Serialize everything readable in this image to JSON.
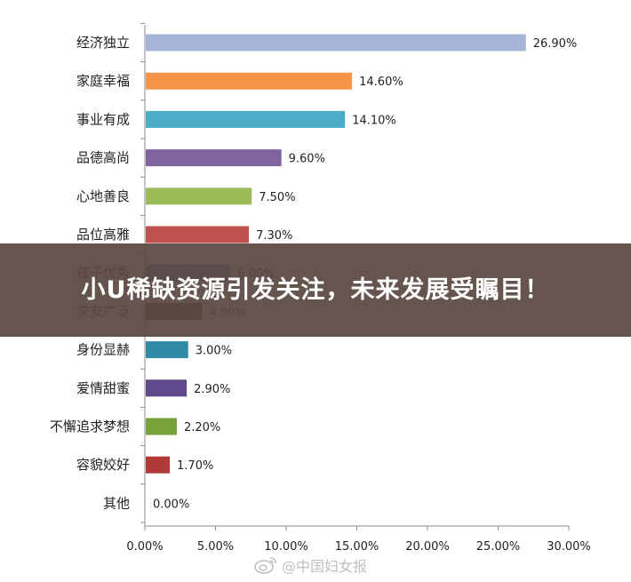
{
  "banner": {
    "text": "小U稀缺资源引发关注，未来发展受瞩目！"
  },
  "watermark": {
    "text": "@中国妇女报",
    "icon": "weibo-icon"
  },
  "chart_data": {
    "type": "bar",
    "orientation": "horizontal",
    "categories": [
      "经济独立",
      "家庭幸福",
      "事业有成",
      "品德高尚",
      "心地善良",
      "品位高雅",
      "孩子优秀",
      "交友广泛",
      "身份显赫",
      "爱情甜蜜",
      "不懈追求梦想",
      "容貌姣好",
      "其他"
    ],
    "values": [
      26.9,
      14.6,
      14.1,
      9.6,
      7.5,
      7.3,
      6.0,
      4.0,
      3.0,
      2.9,
      2.2,
      1.7,
      0.0
    ],
    "value_labels": [
      "26.90%",
      "14.60%",
      "14.10%",
      "9.60%",
      "7.50%",
      "7.30%",
      "6.00%",
      "4.00%",
      "3.00%",
      "2.90%",
      "2.20%",
      "1.70%",
      "0.00%"
    ],
    "colors": [
      "#a4b4d6",
      "#f69547",
      "#4bacc6",
      "#8064a2",
      "#9bbb59",
      "#c0504d",
      "#4f81bd",
      "#6b3c1f",
      "#2f8aa6",
      "#5f4a8b",
      "#77a13a",
      "#b03a38",
      "#4f81bd"
    ],
    "xlim": [
      0,
      30
    ],
    "xticks": [
      "0.00%",
      "5.00%",
      "10.00%",
      "15.00%",
      "20.00%",
      "25.00%",
      "30.00%"
    ],
    "title": "",
    "xlabel": "",
    "ylabel": "",
    "grid": false,
    "legend": "none"
  }
}
